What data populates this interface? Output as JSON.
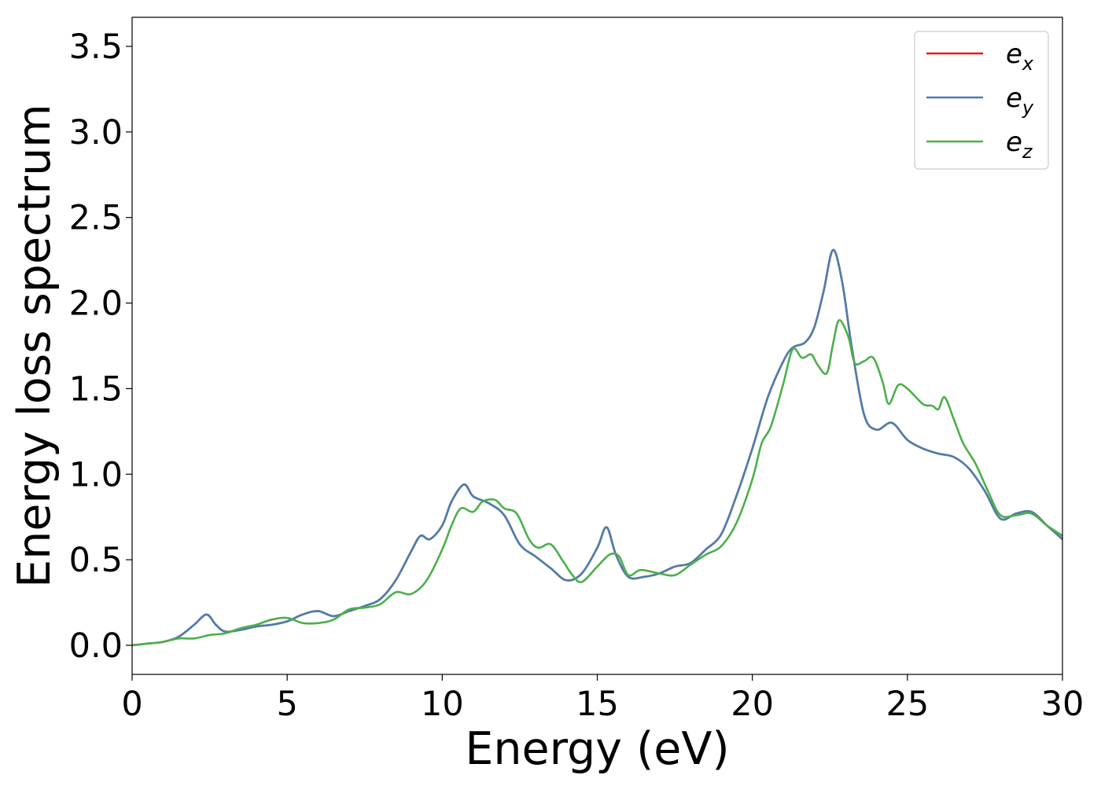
{
  "chart_data": {
    "type": "line",
    "xlabel": "Energy (eV)",
    "ylabel": "Energy loss spectrum",
    "xlim": [
      0,
      30
    ],
    "ylim": [
      -0.17,
      3.67
    ],
    "xticks": [
      "0",
      "5",
      "10",
      "15",
      "20",
      "25",
      "30"
    ],
    "yticks": [
      "0.0",
      "0.5",
      "1.0",
      "1.5",
      "2.0",
      "2.5",
      "3.0",
      "3.5"
    ],
    "grid": false,
    "legend_position": "top-right",
    "series": [
      {
        "name": "e",
        "subscript": "x",
        "color": "#e41a1c",
        "x": [
          0,
          0.5,
          1,
          1.5,
          2,
          2.4,
          2.7,
          3,
          3.5,
          4,
          4.5,
          5,
          5.5,
          6,
          6.5,
          7,
          7.5,
          8,
          8.5,
          9,
          9.3,
          9.6,
          10,
          10.3,
          10.7,
          11,
          11.5,
          12,
          12.5,
          13,
          13.5,
          14,
          14.5,
          15,
          15.3,
          15.6,
          16,
          16.5,
          17,
          17.5,
          18,
          18.5,
          19,
          19.5,
          20,
          20.5,
          21,
          21.3,
          21.7,
          22,
          22.3,
          22.6,
          22.9,
          23.2,
          23.6,
          24,
          24.5,
          25,
          25.5,
          26,
          26.5,
          27,
          27.5,
          28,
          28.5,
          29,
          29.5,
          30
        ],
        "y": [
          0,
          0.01,
          0.02,
          0.05,
          0.12,
          0.18,
          0.12,
          0.08,
          0.09,
          0.11,
          0.12,
          0.14,
          0.18,
          0.2,
          0.17,
          0.2,
          0.23,
          0.27,
          0.38,
          0.55,
          0.64,
          0.62,
          0.7,
          0.84,
          0.94,
          0.87,
          0.83,
          0.76,
          0.59,
          0.52,
          0.45,
          0.38,
          0.42,
          0.57,
          0.69,
          0.53,
          0.4,
          0.4,
          0.42,
          0.46,
          0.48,
          0.56,
          0.65,
          0.88,
          1.15,
          1.45,
          1.66,
          1.74,
          1.77,
          1.86,
          2.07,
          2.31,
          2.12,
          1.75,
          1.35,
          1.26,
          1.3,
          1.2,
          1.15,
          1.12,
          1.1,
          1.03,
          0.9,
          0.74,
          0.77,
          0.78,
          0.7,
          0.62
        ]
      },
      {
        "name": "e",
        "subscript": "y",
        "color": "#4a7fae",
        "x": [
          0,
          0.5,
          1,
          1.5,
          2,
          2.4,
          2.7,
          3,
          3.5,
          4,
          4.5,
          5,
          5.5,
          6,
          6.5,
          7,
          7.5,
          8,
          8.5,
          9,
          9.3,
          9.6,
          10,
          10.3,
          10.7,
          11,
          11.5,
          12,
          12.5,
          13,
          13.5,
          14,
          14.5,
          15,
          15.3,
          15.6,
          16,
          16.5,
          17,
          17.5,
          18,
          18.5,
          19,
          19.5,
          20,
          20.5,
          21,
          21.3,
          21.7,
          22,
          22.3,
          22.6,
          22.9,
          23.2,
          23.6,
          24,
          24.5,
          25,
          25.5,
          26,
          26.5,
          27,
          27.5,
          28,
          28.5,
          29,
          29.5,
          30
        ],
        "y": [
          0,
          0.01,
          0.02,
          0.05,
          0.12,
          0.18,
          0.12,
          0.08,
          0.09,
          0.11,
          0.12,
          0.14,
          0.18,
          0.2,
          0.17,
          0.2,
          0.23,
          0.27,
          0.38,
          0.55,
          0.64,
          0.62,
          0.7,
          0.84,
          0.94,
          0.87,
          0.83,
          0.76,
          0.59,
          0.52,
          0.45,
          0.38,
          0.42,
          0.57,
          0.69,
          0.53,
          0.4,
          0.4,
          0.42,
          0.46,
          0.48,
          0.56,
          0.65,
          0.88,
          1.15,
          1.45,
          1.66,
          1.74,
          1.77,
          1.86,
          2.07,
          2.31,
          2.12,
          1.75,
          1.35,
          1.26,
          1.3,
          1.2,
          1.15,
          1.12,
          1.1,
          1.03,
          0.9,
          0.74,
          0.77,
          0.78,
          0.7,
          0.62
        ]
      },
      {
        "name": "e",
        "subscript": "z",
        "color": "#4daf4a",
        "x": [
          0,
          0.5,
          1,
          1.5,
          2,
          2.5,
          3,
          3.5,
          4,
          4.5,
          5,
          5.5,
          6,
          6.5,
          7,
          7.5,
          8,
          8.5,
          9,
          9.5,
          10,
          10.3,
          10.6,
          11,
          11.3,
          11.7,
          12,
          12.4,
          12.8,
          13.1,
          13.5,
          13.9,
          14.2,
          14.5,
          15,
          15.4,
          15.7,
          16,
          16.4,
          17,
          17.5,
          18,
          18.5,
          19,
          19.5,
          20,
          20.3,
          20.6,
          21,
          21.3,
          21.6,
          21.9,
          22.1,
          22.4,
          22.6,
          22.8,
          23.1,
          23.3,
          23.6,
          23.9,
          24.2,
          24.4,
          24.7,
          25,
          25.5,
          25.8,
          26,
          26.2,
          26.5,
          26.8,
          27.2,
          27.6,
          28,
          28.5,
          29,
          29.5,
          30
        ],
        "y": [
          0,
          0.01,
          0.02,
          0.04,
          0.04,
          0.06,
          0.07,
          0.1,
          0.12,
          0.15,
          0.16,
          0.13,
          0.13,
          0.15,
          0.21,
          0.22,
          0.24,
          0.31,
          0.3,
          0.38,
          0.56,
          0.7,
          0.8,
          0.78,
          0.84,
          0.85,
          0.8,
          0.77,
          0.62,
          0.57,
          0.59,
          0.49,
          0.41,
          0.37,
          0.46,
          0.53,
          0.52,
          0.41,
          0.44,
          0.42,
          0.41,
          0.47,
          0.53,
          0.58,
          0.72,
          0.97,
          1.18,
          1.28,
          1.53,
          1.73,
          1.68,
          1.7,
          1.64,
          1.59,
          1.76,
          1.9,
          1.8,
          1.65,
          1.66,
          1.68,
          1.54,
          1.41,
          1.52,
          1.5,
          1.41,
          1.4,
          1.38,
          1.45,
          1.32,
          1.18,
          1.06,
          0.9,
          0.76,
          0.76,
          0.77,
          0.7,
          0.64
        ]
      }
    ]
  }
}
